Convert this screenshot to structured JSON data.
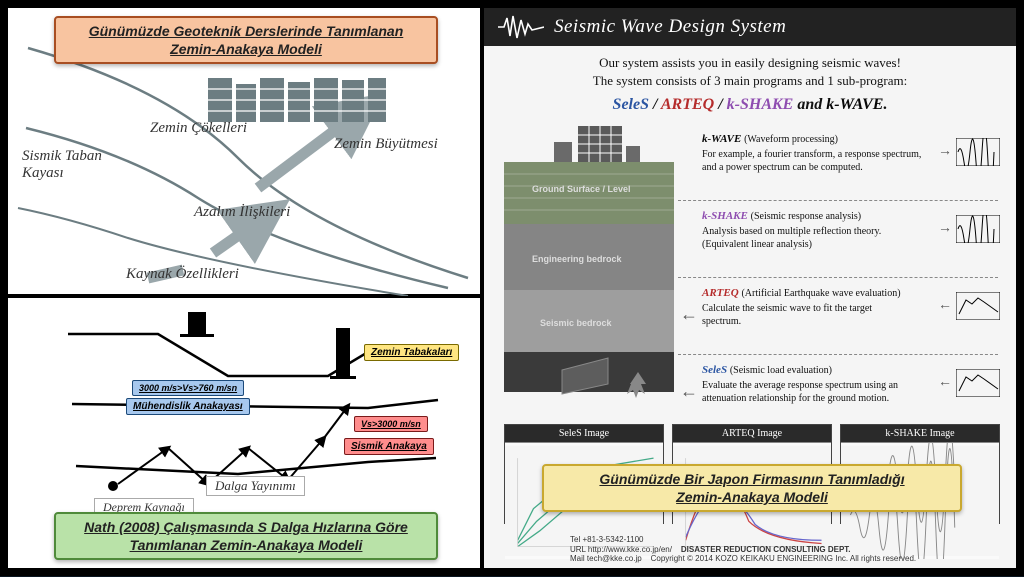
{
  "captions": {
    "top_left": "Günümüzde Geoteknik Derslerinde Tanımlanan\nZemin-Anakaya Modeli",
    "bottom_left": "Nath (2008) Çalışmasında S Dalga Hızlarına Göre\nTanımlanan Zemin-Anakaya Modeli",
    "right": "Günümüzde Bir Japon Firmasının Tanımladığı\nZemin-Anakaya Modeli"
  },
  "top_left_diagram": {
    "labels": {
      "zemin_cokelleri": "Zemin Çökelleri",
      "zemin_buyutmesi": "Zemin Büyütmesi",
      "sismik_taban": "Sismik Taban\nKayası",
      "azalim": "Azalım İlişkileri",
      "kaynak": "Kaynak Özellikleri"
    },
    "colors": {
      "line": "#6c7d82",
      "arrow": "#9aa7ab",
      "text": "#333333"
    }
  },
  "bottom_left_diagram": {
    "boxes": {
      "zemin_tabakalari": "Zemin Tabakaları",
      "vs_range": "3000 m/s>Vs>760 m/sn",
      "muhendislik": "Mühendislik Anakayası",
      "vs_high": "Vs>3000 m/sn",
      "sismik_anakaya": "Sismik Anakaya",
      "dalga": "Dalga Yayınımı",
      "deprem": "Deprem Kaynağı"
    }
  },
  "right_panel": {
    "banner": "Seismic Wave Design System",
    "intro_line1": "Our system assists you in easily designing seismic waves!",
    "intro_line2": "The system consists of 3 main programs and 1 sub-program:",
    "programs": [
      {
        "name": "SeleS",
        "color": "#2b55a2"
      },
      {
        "name": "ARTEQ",
        "color": "#b52c2c"
      },
      {
        "name": "k-SHAKE",
        "color": "#8e4db0"
      },
      {
        "name": "k-WAVE",
        "color": "#070707"
      }
    ],
    "items": [
      {
        "title": "k-WAVE",
        "subtitle": "(Waveform processing)",
        "desc": "For example, a fourier transform, a response spectrum,\nand a power spectrum can be computed.",
        "title_color": "#070707"
      },
      {
        "title": "k-SHAKE",
        "subtitle": "(Seismic response analysis)",
        "desc": "Analysis based on multiple reflection theory.\n(Equivalent linear analysis)",
        "title_color": "#8e4db0"
      },
      {
        "title": "ARTEQ",
        "subtitle": "(Artificial Earthquake wave evaluation)",
        "desc": "Calculate the seismic wave to fit the target\nspectrum.",
        "title_color": "#b52c2c"
      },
      {
        "title": "SeleS",
        "subtitle": "(Seismic load evaluation)",
        "desc": "Evaluate the average response spectrum using an\nattenuation relationship for the ground motion.",
        "title_color": "#2b55a2"
      }
    ],
    "layers": {
      "ground": "Ground Surface / Level",
      "eng": "Engineering bedrock",
      "seis": "Seismic bedrock"
    },
    "thumbs": [
      "SeleS Image",
      "ARTEQ Image",
      "k-SHAKE Image"
    ],
    "footer": {
      "tel": "Tel +81-3-5342-1100",
      "url": "URL http://www.kke.co.jp/en/",
      "mail": "Mail tech@kke.co.jp",
      "dept": "DISASTER REDUCTION CONSULTING DEPT.",
      "copy": "Copyright © 2014 KOZO KEIKAKU ENGINEERING Inc. All rights reserved."
    }
  }
}
